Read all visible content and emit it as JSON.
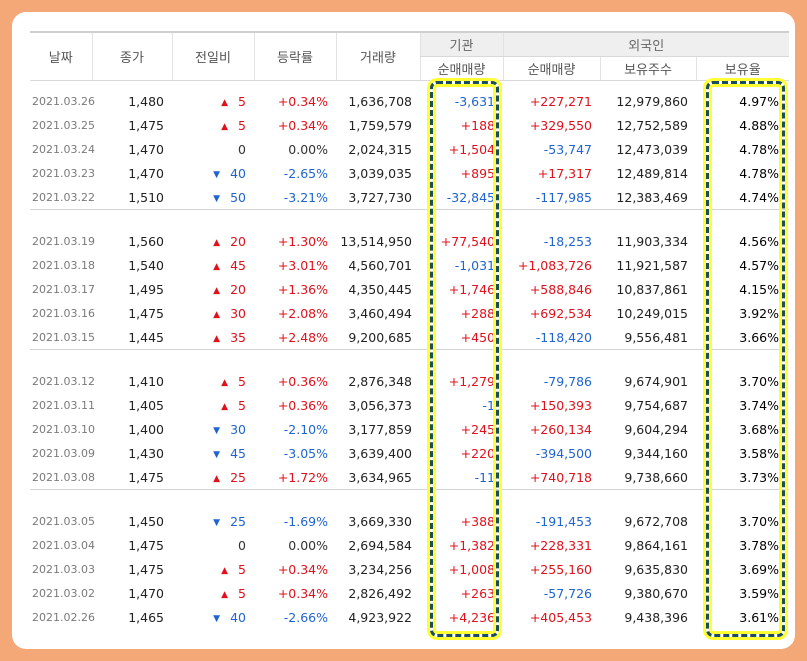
{
  "headers": {
    "date": "날짜",
    "close": "종가",
    "change": "전일비",
    "rate": "등락률",
    "volume": "거래량",
    "institution": "기관",
    "foreign": "외국인",
    "inst_net": "순매매량",
    "frgn_net": "순매매량",
    "frgn_shares": "보유주수",
    "frgn_ratio": "보유율"
  },
  "colors": {
    "up": "#e0111c",
    "down": "#1f64d0",
    "highlight": "#ffff33",
    "frame": "#f4a878"
  },
  "weeks": [
    [
      {
        "date": "2021.03.26",
        "close": "1,480",
        "dir": "up",
        "change": "5",
        "rate": "+0.34%",
        "volume": "1,636,708",
        "inst": "-3,631",
        "frgn": "+227,271",
        "shares": "12,979,860",
        "ratio": "4.97%"
      },
      {
        "date": "2021.03.25",
        "close": "1,475",
        "dir": "up",
        "change": "5",
        "rate": "+0.34%",
        "volume": "1,759,579",
        "inst": "+188",
        "frgn": "+329,550",
        "shares": "12,752,589",
        "ratio": "4.88%"
      },
      {
        "date": "2021.03.24",
        "close": "1,470",
        "dir": "none",
        "change": "0",
        "rate": "0.00%",
        "volume": "2,024,315",
        "inst": "+1,504",
        "frgn": "-53,747",
        "shares": "12,473,039",
        "ratio": "4.78%"
      },
      {
        "date": "2021.03.23",
        "close": "1,470",
        "dir": "down",
        "change": "40",
        "rate": "-2.65%",
        "volume": "3,039,035",
        "inst": "+895",
        "frgn": "+17,317",
        "shares": "12,489,814",
        "ratio": "4.78%"
      },
      {
        "date": "2021.03.22",
        "close": "1,510",
        "dir": "down",
        "change": "50",
        "rate": "-3.21%",
        "volume": "3,727,730",
        "inst": "-32,845",
        "frgn": "-117,985",
        "shares": "12,383,469",
        "ratio": "4.74%"
      }
    ],
    [
      {
        "date": "2021.03.19",
        "close": "1,560",
        "dir": "up",
        "change": "20",
        "rate": "+1.30%",
        "volume": "13,514,950",
        "inst": "+77,540",
        "frgn": "-18,253",
        "shares": "11,903,334",
        "ratio": "4.56%"
      },
      {
        "date": "2021.03.18",
        "close": "1,540",
        "dir": "up",
        "change": "45",
        "rate": "+3.01%",
        "volume": "4,560,701",
        "inst": "-1,031",
        "frgn": "+1,083,726",
        "shares": "11,921,587",
        "ratio": "4.57%"
      },
      {
        "date": "2021.03.17",
        "close": "1,495",
        "dir": "up",
        "change": "20",
        "rate": "+1.36%",
        "volume": "4,350,445",
        "inst": "+1,746",
        "frgn": "+588,846",
        "shares": "10,837,861",
        "ratio": "4.15%"
      },
      {
        "date": "2021.03.16",
        "close": "1,475",
        "dir": "up",
        "change": "30",
        "rate": "+2.08%",
        "volume": "3,460,494",
        "inst": "+288",
        "frgn": "+692,534",
        "shares": "10,249,015",
        "ratio": "3.92%"
      },
      {
        "date": "2021.03.15",
        "close": "1,445",
        "dir": "up",
        "change": "35",
        "rate": "+2.48%",
        "volume": "9,200,685",
        "inst": "+450",
        "frgn": "-118,420",
        "shares": "9,556,481",
        "ratio": "3.66%"
      }
    ],
    [
      {
        "date": "2021.03.12",
        "close": "1,410",
        "dir": "up",
        "change": "5",
        "rate": "+0.36%",
        "volume": "2,876,348",
        "inst": "+1,279",
        "frgn": "-79,786",
        "shares": "9,674,901",
        "ratio": "3.70%"
      },
      {
        "date": "2021.03.11",
        "close": "1,405",
        "dir": "up",
        "change": "5",
        "rate": "+0.36%",
        "volume": "3,056,373",
        "inst": "-1",
        "frgn": "+150,393",
        "shares": "9,754,687",
        "ratio": "3.74%"
      },
      {
        "date": "2021.03.10",
        "close": "1,400",
        "dir": "down",
        "change": "30",
        "rate": "-2.10%",
        "volume": "3,177,859",
        "inst": "+245",
        "frgn": "+260,134",
        "shares": "9,604,294",
        "ratio": "3.68%"
      },
      {
        "date": "2021.03.09",
        "close": "1,430",
        "dir": "down",
        "change": "45",
        "rate": "-3.05%",
        "volume": "3,639,400",
        "inst": "+220",
        "frgn": "-394,500",
        "shares": "9,344,160",
        "ratio": "3.58%"
      },
      {
        "date": "2021.03.08",
        "close": "1,475",
        "dir": "up",
        "change": "25",
        "rate": "+1.72%",
        "volume": "3,634,965",
        "inst": "-11",
        "frgn": "+740,718",
        "shares": "9,738,660",
        "ratio": "3.73%"
      }
    ],
    [
      {
        "date": "2021.03.05",
        "close": "1,450",
        "dir": "down",
        "change": "25",
        "rate": "-1.69%",
        "volume": "3,669,330",
        "inst": "+388",
        "frgn": "-191,453",
        "shares": "9,672,708",
        "ratio": "3.70%"
      },
      {
        "date": "2021.03.04",
        "close": "1,475",
        "dir": "none",
        "change": "0",
        "rate": "0.00%",
        "volume": "2,694,584",
        "inst": "+1,382",
        "frgn": "+228,331",
        "shares": "9,864,161",
        "ratio": "3.78%"
      },
      {
        "date": "2021.03.03",
        "close": "1,475",
        "dir": "up",
        "change": "5",
        "rate": "+0.34%",
        "volume": "3,234,256",
        "inst": "+1,008",
        "frgn": "+255,160",
        "shares": "9,635,830",
        "ratio": "3.69%"
      },
      {
        "date": "2021.03.02",
        "close": "1,470",
        "dir": "up",
        "change": "5",
        "rate": "+0.34%",
        "volume": "2,826,492",
        "inst": "+263",
        "frgn": "-57,726",
        "shares": "9,380,670",
        "ratio": "3.59%"
      },
      {
        "date": "2021.02.26",
        "close": "1,465",
        "dir": "down",
        "change": "40",
        "rate": "-2.66%",
        "volume": "4,923,922",
        "inst": "+4,236",
        "frgn": "+405,453",
        "shares": "9,438,396",
        "ratio": "3.61%"
      }
    ]
  ]
}
